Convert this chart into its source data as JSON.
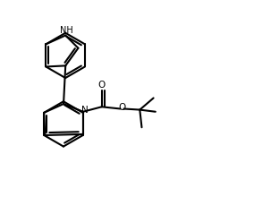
{
  "bg_color": "#ffffff",
  "line_color": "#000000",
  "lw": 1.5,
  "figsize": [
    2.84,
    2.2
  ],
  "dpi": 100,
  "NH_label": "NH",
  "N_label": "N",
  "O_label": "O",
  "O2_label": "O"
}
